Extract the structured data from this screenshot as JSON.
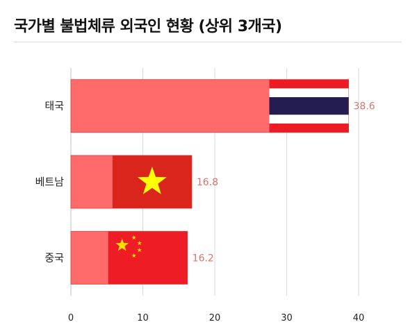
{
  "title": "국가별 불법체류 외국인 현황 (상위 3개국)",
  "chart_data": {
    "type": "bar",
    "orientation": "horizontal",
    "title": "국가별 불법체류 외국인 현황 (상위 3개국)",
    "categories": [
      "태국",
      "베트남",
      "중국"
    ],
    "values": [
      38.6,
      16.8,
      16.2
    ],
    "value_labels": [
      "38.6",
      "16.8",
      "16.2"
    ],
    "xlim": [
      0,
      40
    ],
    "xticks": [
      0,
      10,
      20,
      30,
      40
    ],
    "xticklabels": [
      "0",
      "10",
      "20",
      "30",
      "40"
    ],
    "grid": true,
    "legend": "none",
    "flag_icons": [
      "thailand-flag-icon",
      "vietnam-flag-icon",
      "china-flag-icon"
    ]
  },
  "colors": {
    "bar": "#ff6b6b",
    "bar_edge": "#e04a4a",
    "value_label": "#d9736b",
    "grid": "#d9d9d9",
    "thai_red": "#ed1c24",
    "thai_blue": "#241d4f",
    "vn_red": "#da251d",
    "vn_star": "#ffff00",
    "cn_red": "#ee1c25",
    "cn_star": "#ffde00"
  }
}
